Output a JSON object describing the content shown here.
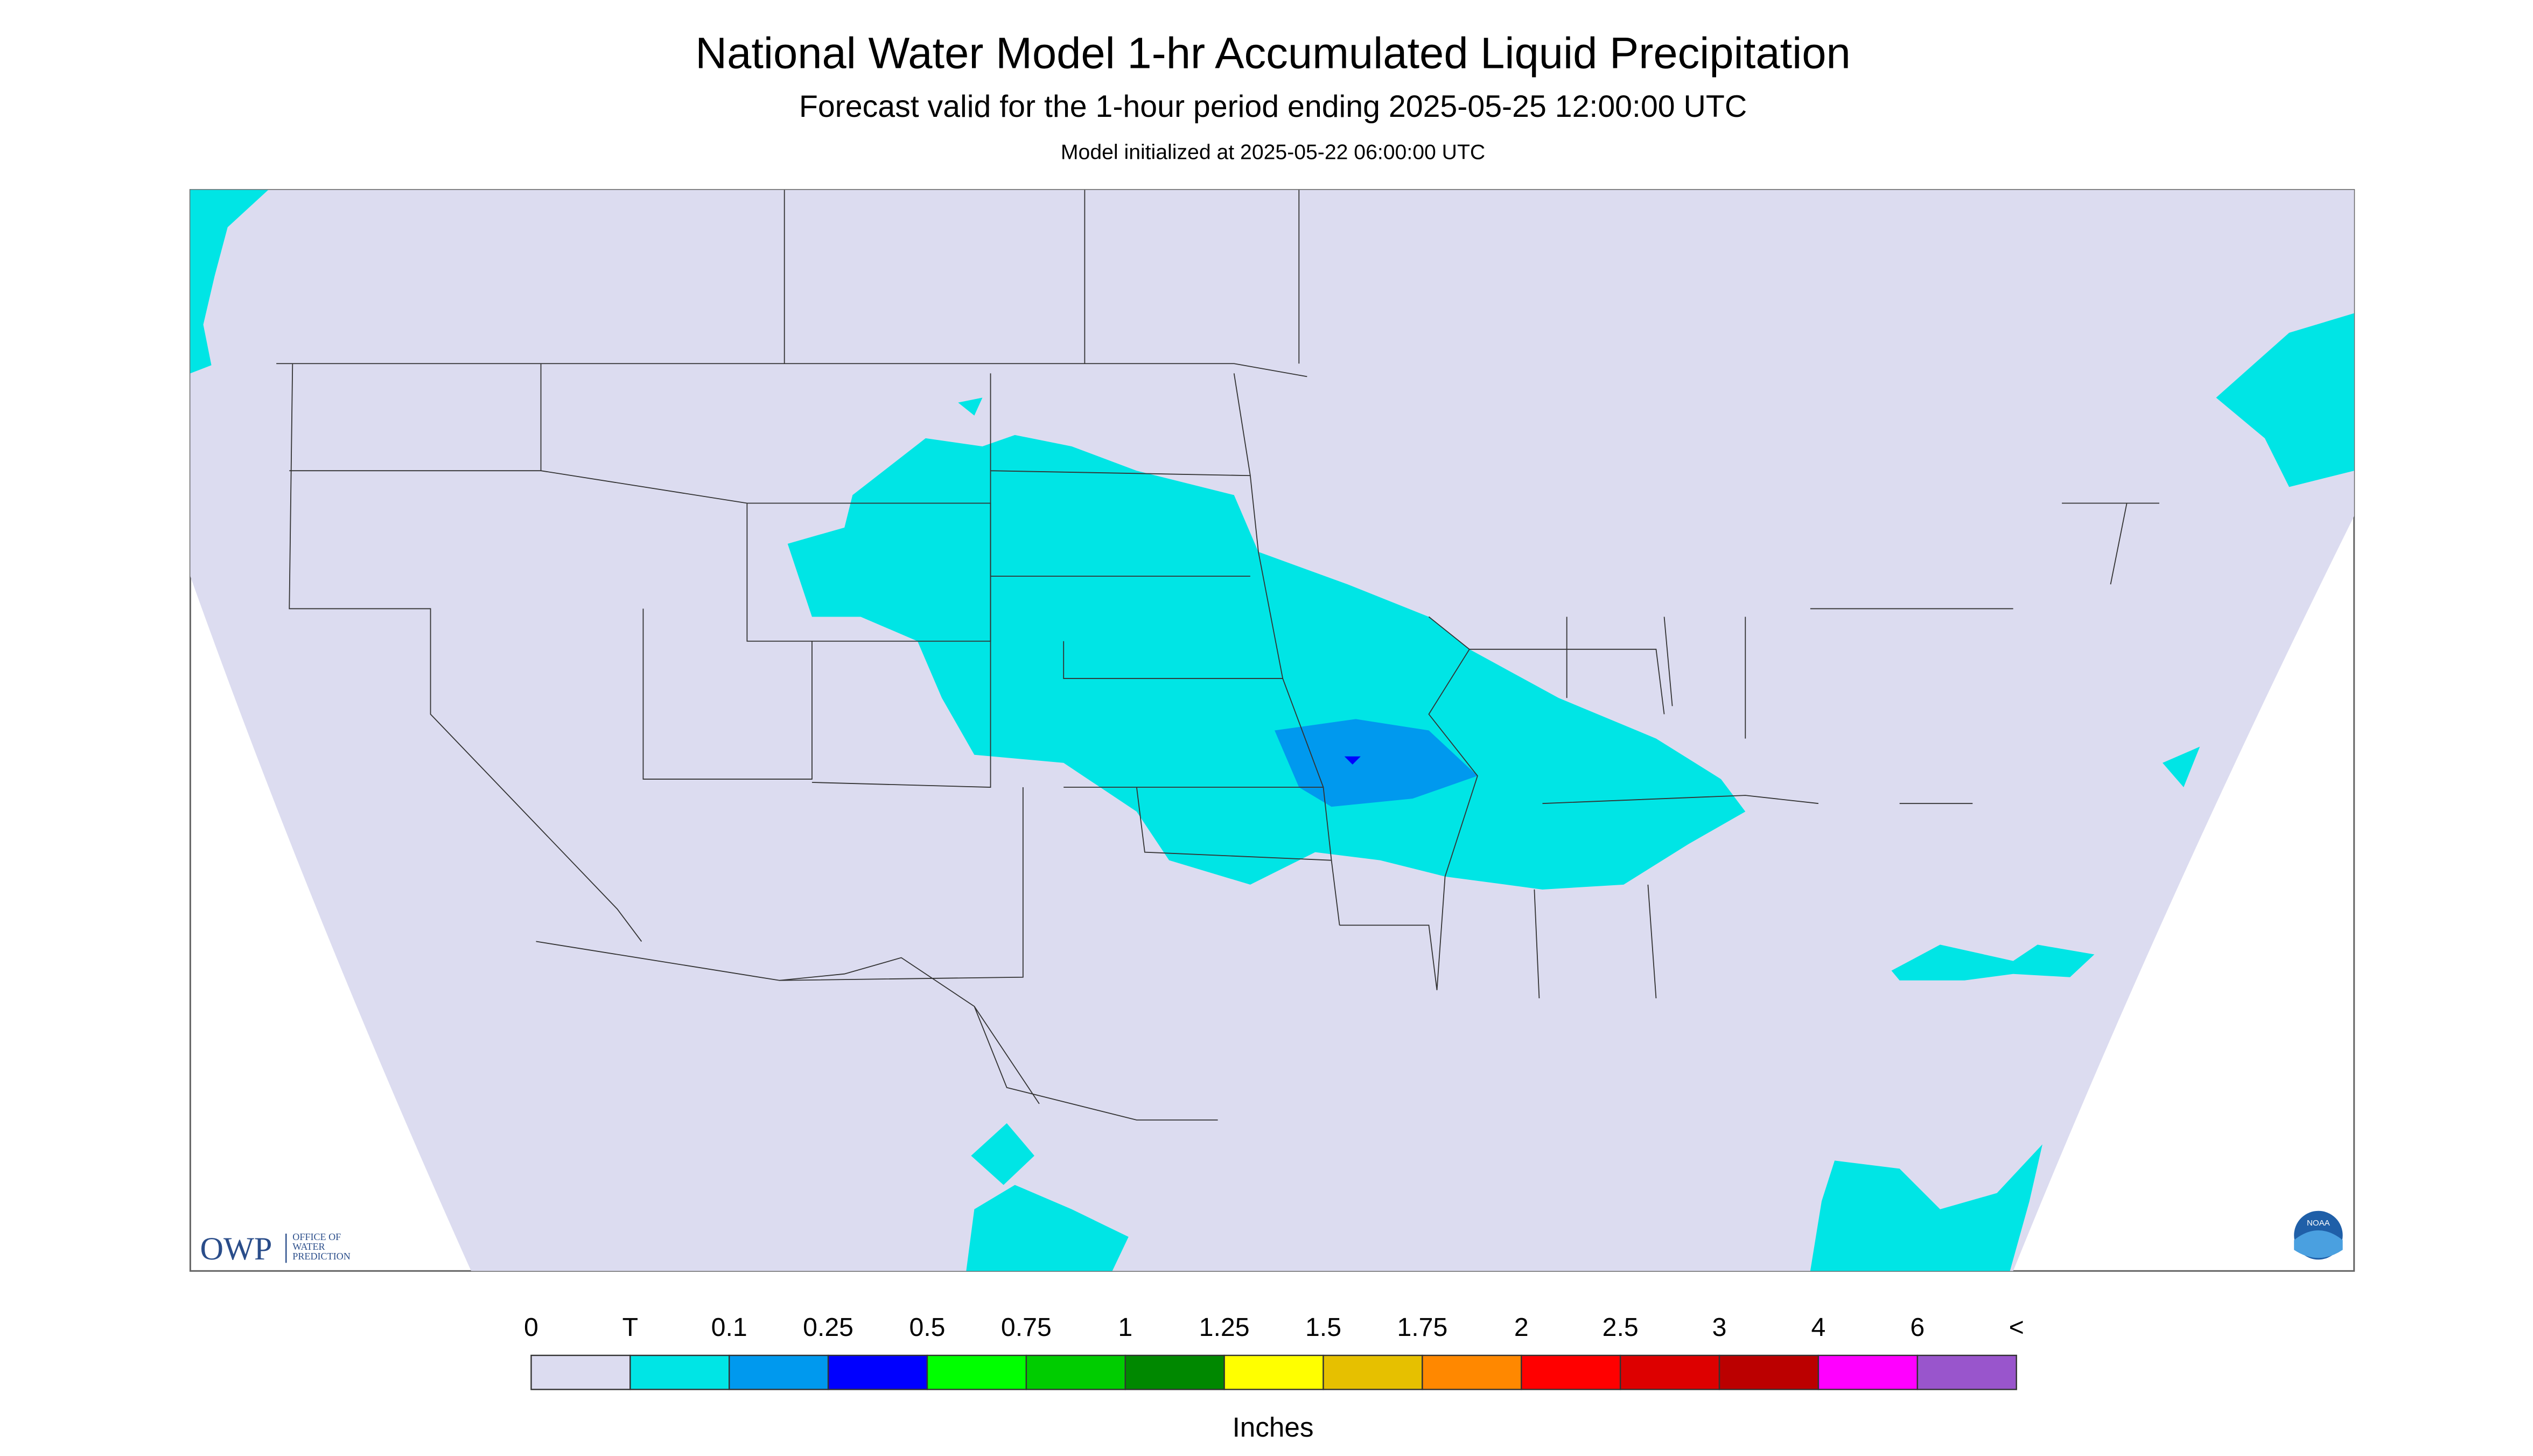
{
  "header": {
    "title": "National Water Model 1-hr Accumulated Liquid Precipitation",
    "subtitle": "Forecast valid for the 1-hour period ending 2025-05-25 12:00:00 UTC",
    "note": "Model initialized at 2025-05-22 06:00:00 UTC"
  },
  "logos": {
    "owp": "OWP",
    "owp_lines": [
      "OFFICE OF",
      "WATER",
      "PREDICTION"
    ],
    "noaa": "NOAA"
  },
  "legend": {
    "unit": "Inches",
    "labels": [
      "0",
      "T",
      "0.1",
      "0.25",
      "0.5",
      "0.75",
      "1",
      "1.25",
      "1.5",
      "1.75",
      "2",
      "2.5",
      "3",
      "4",
      "6",
      "<"
    ],
    "colors": [
      "#dcdcf0",
      "#00e5e5",
      "#0099ee",
      "#0000ff",
      "#00ff00",
      "#00cc00",
      "#008800",
      "#ffff00",
      "#e6c000",
      "#ff8800",
      "#ff0000",
      "#dd0000",
      "#bb0000",
      "#ff00ff",
      "#9955cc"
    ]
  }
}
